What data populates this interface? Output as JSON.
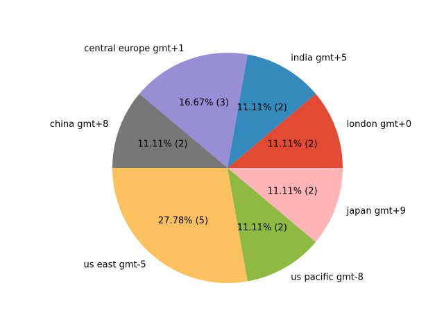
{
  "chart_data": {
    "type": "pie",
    "title": "",
    "start_angle_deg": 0,
    "direction": "counterclockwise",
    "slices": [
      {
        "label": "london gmt+0",
        "value": 2,
        "percent_label": "11.11%  (2)",
        "color": "#E24A33"
      },
      {
        "label": "india gmt+5",
        "value": 2,
        "percent_label": "11.11%  (2)",
        "color": "#348ABD"
      },
      {
        "label": "central europe gmt+1",
        "value": 3,
        "percent_label": "16.67%  (3)",
        "color": "#988ED5"
      },
      {
        "label": "china gmt+8",
        "value": 2,
        "percent_label": "11.11%  (2)",
        "color": "#777777"
      },
      {
        "label": "us east gmt-5",
        "value": 5,
        "percent_label": "27.78%  (5)",
        "color": "#FBC15E"
      },
      {
        "label": "us pacific gmt-8",
        "value": 2,
        "percent_label": "11.11%  (2)",
        "color": "#8EBA42"
      },
      {
        "label": "japan gmt+9",
        "value": 2,
        "percent_label": "11.11%  (2)",
        "color": "#FFB5B8"
      }
    ]
  }
}
